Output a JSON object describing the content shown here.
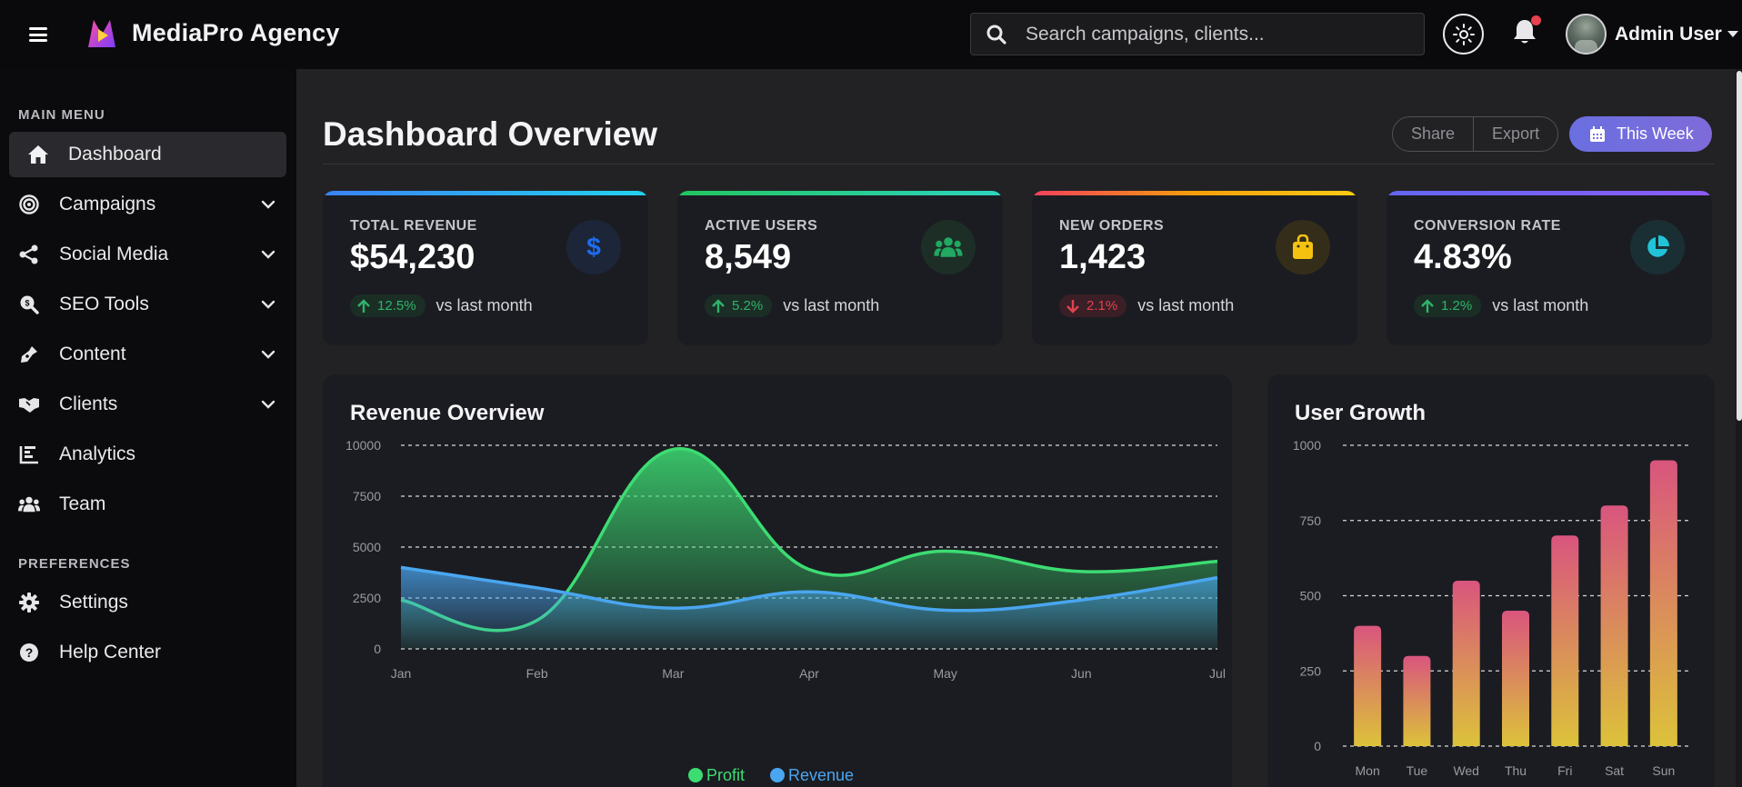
{
  "brand": {
    "name": "MediaPro Agency"
  },
  "search": {
    "placeholder": "Search campaigns, clients..."
  },
  "user": {
    "name": "Admin User"
  },
  "sidebar": {
    "main_title": "MAIN MENU",
    "items": [
      {
        "label": "Dashboard",
        "icon": "home-icon",
        "active": true
      },
      {
        "label": "Campaigns",
        "icon": "bullseye-icon",
        "expandable": true
      },
      {
        "label": "Social Media",
        "icon": "share-icon",
        "expandable": true
      },
      {
        "label": "SEO Tools",
        "icon": "search-dollar-icon",
        "expandable": true
      },
      {
        "label": "Content",
        "icon": "pen-nib-icon",
        "expandable": true
      },
      {
        "label": "Clients",
        "icon": "handshake-icon",
        "expandable": true
      },
      {
        "label": "Analytics",
        "icon": "chart-icon"
      },
      {
        "label": "Team",
        "icon": "users-icon"
      }
    ],
    "pref_title": "PREFERENCES",
    "pref_items": [
      {
        "label": "Settings",
        "icon": "gear-icon"
      },
      {
        "label": "Help Center",
        "icon": "question-circle-icon"
      }
    ]
  },
  "header": {
    "title": "Dashboard Overview",
    "share_label": "Share",
    "export_label": "Export",
    "period_label": "This Week"
  },
  "stats": [
    {
      "label": "TOTAL REVENUE",
      "value": "$54,230",
      "change": "12.5%",
      "direction": "up",
      "compare": "vs last month",
      "icon": "dollar-icon",
      "accent": "#1e6cf0"
    },
    {
      "label": "ACTIVE USERS",
      "value": "8,549",
      "change": "5.2%",
      "direction": "up",
      "compare": "vs last month",
      "icon": "users-icon",
      "accent": "#21a861"
    },
    {
      "label": "NEW ORDERS",
      "value": "1,423",
      "change": "2.1%",
      "direction": "down",
      "compare": "vs last month",
      "icon": "shopping-bag-icon",
      "accent": "#f5c210"
    },
    {
      "label": "CONVERSION RATE",
      "value": "4.83%",
      "change": "1.2%",
      "direction": "up",
      "compare": "vs last month",
      "icon": "pie-chart-icon",
      "accent": "#22c3d8"
    }
  ],
  "colors": {
    "up": "#2fb36a",
    "down": "#e0434f",
    "profit": "#3ddc73",
    "revenue": "#4aa6f0",
    "accent_gradient": [
      "#6a6fe0",
      "#7e6bd9"
    ]
  },
  "chart_data": [
    {
      "type": "area",
      "title": "Revenue Overview",
      "categories": [
        "Jan",
        "Feb",
        "Mar",
        "Apr",
        "May",
        "Jun",
        "Jul"
      ],
      "ylim": [
        0,
        10000
      ],
      "yticks": [
        0,
        2500,
        5000,
        7500,
        10000
      ],
      "grid": true,
      "legend": "bottom",
      "series": [
        {
          "name": "Profit",
          "values": [
            2400,
            1400,
            9800,
            3900,
            4800,
            3800,
            4300
          ],
          "color": "#3ddc73"
        },
        {
          "name": "Revenue",
          "values": [
            4000,
            3000,
            2000,
            2800,
            1900,
            2400,
            3500
          ],
          "color": "#4aa6f0"
        }
      ]
    },
    {
      "type": "bar",
      "title": "User Growth",
      "categories": [
        "Mon",
        "Tue",
        "Wed",
        "Thu",
        "Fri",
        "Sat",
        "Sun"
      ],
      "values": [
        400,
        300,
        550,
        450,
        700,
        800,
        950
      ],
      "ylim": [
        0,
        1000
      ],
      "yticks": [
        0,
        250,
        500,
        750,
        1000
      ],
      "grid": true
    }
  ]
}
